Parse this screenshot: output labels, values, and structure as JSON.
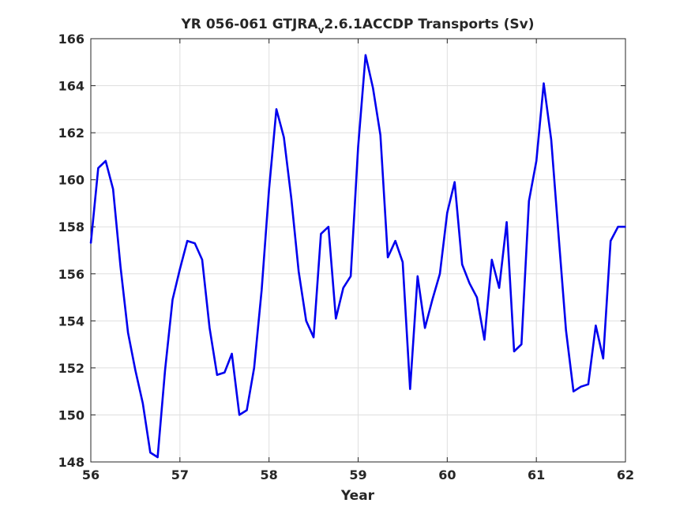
{
  "chart_data": {
    "type": "line",
    "title_main": "YR 056-061 GTJRA",
    "title_sub": "v",
    "title_rest": "2.6.1ACCDP Transports (Sv)",
    "xlabel": "Year",
    "ylabel": "",
    "xlim": [
      56,
      62
    ],
    "ylim": [
      148,
      166
    ],
    "xticks": [
      56,
      57,
      58,
      59,
      60,
      61,
      62
    ],
    "yticks": [
      148,
      150,
      152,
      154,
      156,
      158,
      160,
      162,
      164,
      166
    ],
    "grid": true,
    "line_color": "#0000ee",
    "series": [
      {
        "x": [
          56.0,
          56.083,
          56.167,
          56.25,
          56.333,
          56.417,
          56.5,
          56.583,
          56.667,
          56.75,
          56.833,
          56.917,
          57.0,
          57.083,
          57.167,
          57.25,
          57.333,
          57.417,
          57.5,
          57.583,
          57.667,
          57.75,
          57.833,
          57.917,
          58.0,
          58.083,
          58.167,
          58.25,
          58.333,
          58.417,
          58.5,
          58.583,
          58.667,
          58.75,
          58.833,
          58.917,
          59.0,
          59.083,
          59.167,
          59.25,
          59.333,
          59.417,
          59.5,
          59.583,
          59.667,
          59.75,
          59.833,
          59.917,
          60.0,
          60.083,
          60.167,
          60.25,
          60.333,
          60.417,
          60.5,
          60.583,
          60.667,
          60.75,
          60.833,
          60.917,
          61.0,
          61.083,
          61.167,
          61.25,
          61.333,
          61.417,
          61.5,
          61.583,
          61.667,
          61.75,
          61.833,
          61.917,
          62.0
        ],
        "y": [
          157.3,
          160.5,
          160.8,
          159.6,
          156.3,
          153.5,
          151.9,
          150.5,
          148.4,
          148.2,
          151.9,
          154.9,
          156.2,
          157.4,
          157.3,
          156.6,
          153.7,
          151.7,
          151.8,
          152.6,
          150.0,
          150.2,
          152.0,
          155.3,
          159.6,
          163.0,
          161.8,
          159.2,
          156.1,
          154.0,
          153.3,
          157.7,
          158.0,
          154.1,
          155.4,
          155.9,
          161.4,
          165.3,
          163.9,
          161.9,
          156.7,
          157.4,
          156.5,
          151.1,
          155.9,
          153.7,
          154.9,
          156.0,
          158.6,
          159.9,
          156.4,
          155.6,
          155.0,
          153.2,
          156.6,
          155.4,
          158.2,
          152.7,
          153.0,
          159.1,
          160.8,
          164.1,
          161.7,
          157.6,
          153.6,
          151.0,
          151.2,
          151.3,
          153.8,
          152.4,
          157.4,
          158.0,
          158.0
        ]
      }
    ]
  }
}
